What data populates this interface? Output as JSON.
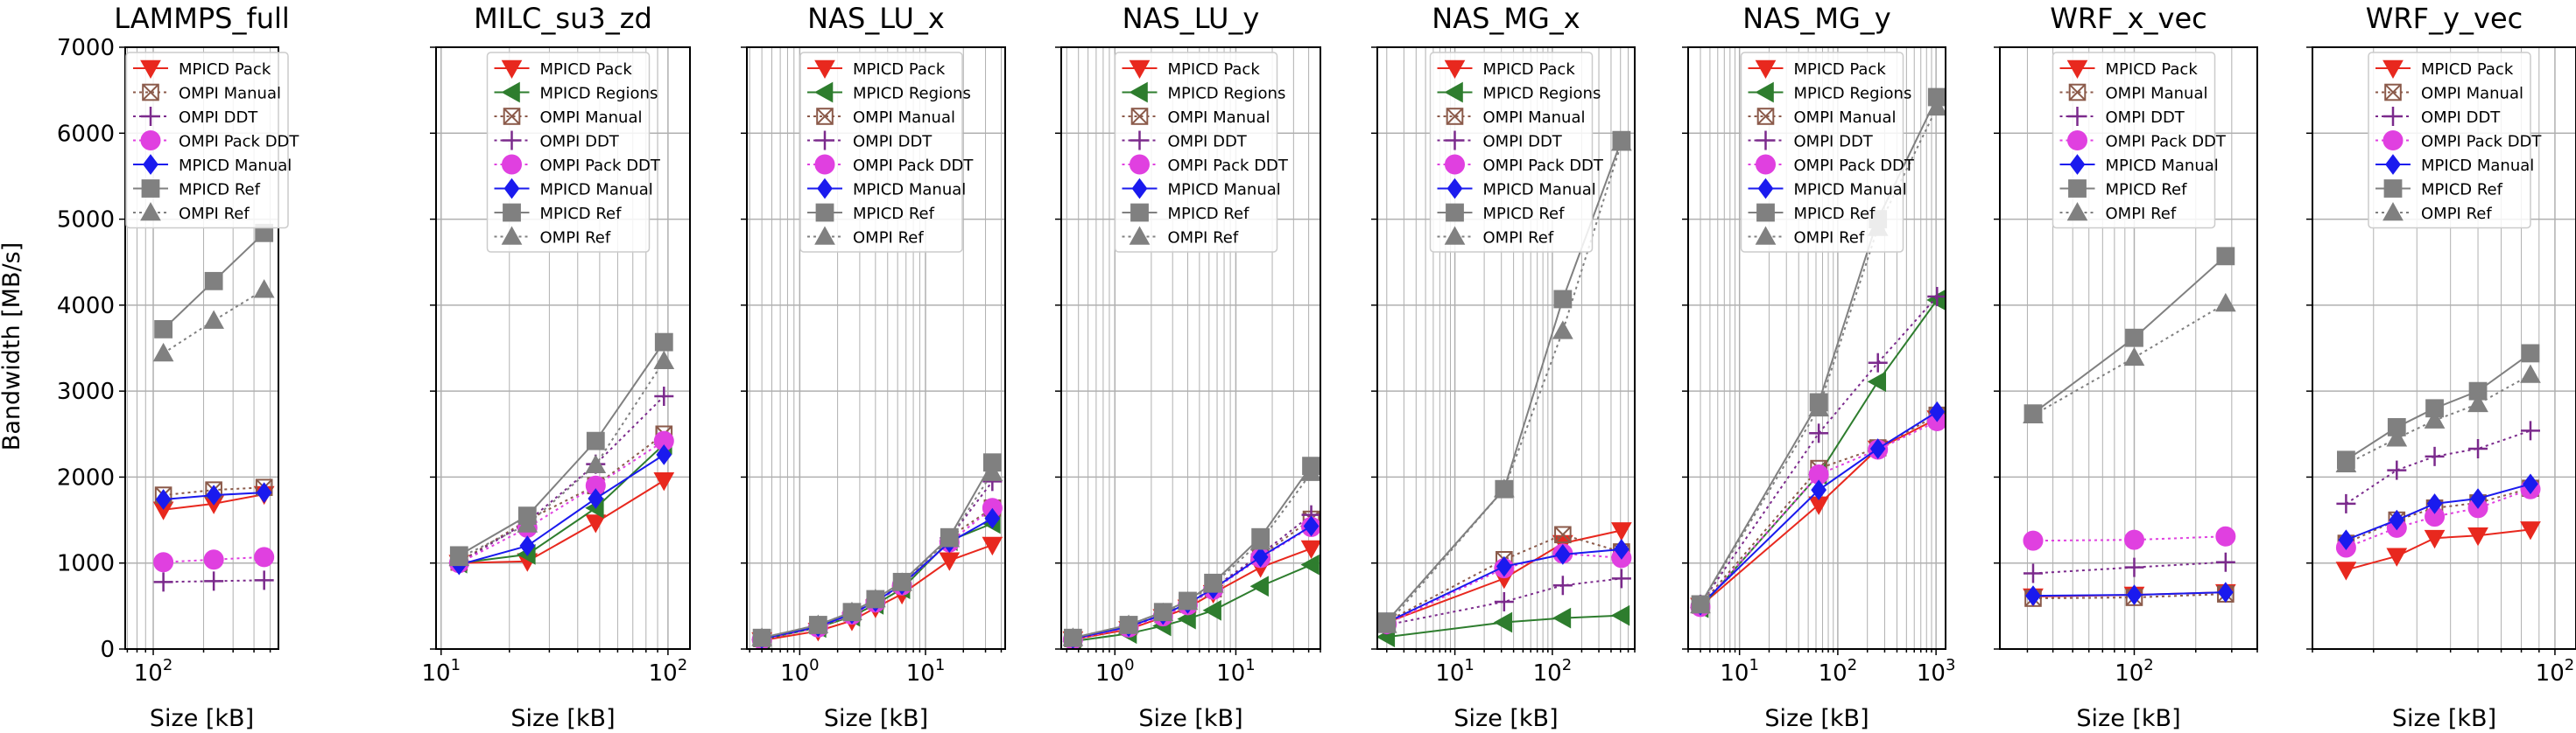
{
  "figure": {
    "ylabel": "Bandwidth [MB/s]",
    "xlabel": "Size [kB]"
  },
  "styles": {
    "MPICD Pack": {
      "color": "#e8281e",
      "marker": "tri-down",
      "dash": "solid"
    },
    "MPICD Regions": {
      "color": "#2e7d2e",
      "marker": "tri-left",
      "dash": "solid"
    },
    "OMPI Manual": {
      "color": "#8b5a4a",
      "marker": "x-box",
      "dash": "dotted"
    },
    "OMPI DDT": {
      "color": "#7b2a8c",
      "marker": "plus",
      "dash": "dotted"
    },
    "OMPI Pack DDT": {
      "color": "#e040e0",
      "marker": "circle",
      "dash": "dotted"
    },
    "MPICD Manual": {
      "color": "#1a1aee",
      "marker": "diamond",
      "dash": "solid"
    },
    "MPICD Ref": {
      "color": "#808080",
      "marker": "square",
      "dash": "solid"
    },
    "OMPI Ref": {
      "color": "#808080",
      "marker": "tri-up",
      "dash": "dotted"
    }
  },
  "chart_data": [
    {
      "type": "line",
      "title": "LAMMPS_full",
      "xlabel": "Size [kB]",
      "ylabel": "Bandwidth [MB/s]",
      "xscale": "log",
      "ylim": [
        0,
        7000
      ],
      "yticks": [
        0,
        1000,
        2000,
        3000,
        4000,
        5000,
        6000,
        7000
      ],
      "grid": true,
      "legend_position": "upper center",
      "x": [
        115,
        230,
        460
      ],
      "series": [
        {
          "name": "MPICD Pack",
          "values": [
            1620,
            1690,
            1800
          ]
        },
        {
          "name": "OMPI Manual",
          "values": [
            1790,
            1850,
            1880
          ]
        },
        {
          "name": "OMPI DDT",
          "values": [
            780,
            790,
            800
          ]
        },
        {
          "name": "OMPI Pack DDT",
          "values": [
            1010,
            1040,
            1070
          ]
        },
        {
          "name": "MPICD Manual",
          "values": [
            1740,
            1790,
            1820
          ]
        },
        {
          "name": "MPICD Ref",
          "values": [
            3720,
            4280,
            4840
          ]
        },
        {
          "name": "OMPI Ref",
          "values": [
            3440,
            3820,
            4180
          ]
        }
      ]
    },
    {
      "type": "line",
      "title": "MILC_su3_zd",
      "xlabel": "Size [kB]",
      "xscale": "log",
      "ylim": [
        0,
        7000
      ],
      "grid": true,
      "legend_position": "upper center",
      "x": [
        12,
        24,
        48,
        96
      ],
      "series": [
        {
          "name": "MPICD Pack",
          "values": [
            1000,
            1020,
            1470,
            1960
          ]
        },
        {
          "name": "MPICD Regions",
          "values": [
            1000,
            1100,
            1640,
            2380
          ]
        },
        {
          "name": "OMPI Manual",
          "values": [
            1010,
            1500,
            1900,
            2500
          ]
        },
        {
          "name": "OMPI DDT",
          "values": [
            1000,
            1480,
            2150,
            2940
          ]
        },
        {
          "name": "OMPI Pack DDT",
          "values": [
            1000,
            1410,
            1900,
            2420
          ]
        },
        {
          "name": "MPICD Manual",
          "values": [
            980,
            1200,
            1750,
            2260
          ]
        },
        {
          "name": "MPICD Ref",
          "values": [
            1090,
            1550,
            2420,
            3570
          ]
        },
        {
          "name": "OMPI Ref",
          "values": [
            1060,
            1450,
            2140,
            3350
          ]
        }
      ]
    },
    {
      "type": "line",
      "title": "NAS_LU_x",
      "xlabel": "Size [kB]",
      "xscale": "log",
      "ylim": [
        0,
        7000
      ],
      "grid": true,
      "legend_position": "upper center",
      "x": [
        0.5,
        1.4,
        2.6,
        4.0,
        6.5,
        15.5,
        34
      ],
      "series": [
        {
          "name": "MPICD Pack",
          "values": [
            100,
            210,
            330,
            480,
            640,
            1030,
            1210
          ]
        },
        {
          "name": "MPICD Regions",
          "values": [
            110,
            250,
            380,
            520,
            700,
            1260,
            1460
          ]
        },
        {
          "name": "OMPI Manual",
          "values": [
            120,
            270,
            420,
            560,
            760,
            1300,
            1640
          ]
        },
        {
          "name": "OMPI DDT",
          "values": [
            120,
            270,
            420,
            560,
            760,
            1290,
            1950
          ]
        },
        {
          "name": "OMPI Pack DDT",
          "values": [
            110,
            250,
            400,
            540,
            740,
            1240,
            1640
          ]
        },
        {
          "name": "MPICD Manual",
          "values": [
            120,
            260,
            410,
            550,
            750,
            1240,
            1520
          ]
        },
        {
          "name": "MPICD Ref",
          "values": [
            130,
            280,
            430,
            580,
            780,
            1300,
            2170
          ]
        },
        {
          "name": "OMPI Ref",
          "values": [
            130,
            280,
            430,
            580,
            770,
            1280,
            2050
          ]
        }
      ]
    },
    {
      "type": "line",
      "title": "NAS_LU_y",
      "xlabel": "Size [kB]",
      "xscale": "log",
      "ylim": [
        0,
        7000
      ],
      "grid": true,
      "legend_position": "upper center",
      "x": [
        0.45,
        1.3,
        2.5,
        4.0,
        6.5,
        16,
        42
      ],
      "series": [
        {
          "name": "MPICD Pack",
          "values": [
            110,
            230,
            370,
            480,
            650,
            950,
            1170
          ]
        },
        {
          "name": "MPICD Regions",
          "values": [
            90,
            180,
            270,
            350,
            450,
            730,
            980
          ]
        },
        {
          "name": "OMPI Manual",
          "values": [
            120,
            260,
            400,
            520,
            700,
            1080,
            1510
          ]
        },
        {
          "name": "OMPI DDT",
          "values": [
            120,
            260,
            400,
            530,
            710,
            1100,
            1560
          ]
        },
        {
          "name": "OMPI Pack DDT",
          "values": [
            110,
            250,
            380,
            510,
            690,
            1060,
            1420
          ]
        },
        {
          "name": "MPICD Manual",
          "values": [
            120,
            260,
            400,
            530,
            700,
            1070,
            1430
          ]
        },
        {
          "name": "MPICD Ref",
          "values": [
            130,
            280,
            430,
            560,
            770,
            1300,
            2130
          ]
        },
        {
          "name": "OMPI Ref",
          "values": [
            130,
            280,
            420,
            550,
            750,
            1250,
            2050
          ]
        }
      ]
    },
    {
      "type": "line",
      "title": "NAS_MG_x",
      "xlabel": "Size [kB]",
      "xscale": "log",
      "ylim": [
        0,
        7000
      ],
      "grid": true,
      "legend_position": "upper center",
      "x": [
        2,
        32,
        128,
        512
      ],
      "series": [
        {
          "name": "MPICD Pack",
          "values": [
            310,
            820,
            1230,
            1380
          ]
        },
        {
          "name": "MPICD Regions",
          "values": [
            140,
            310,
            360,
            390
          ]
        },
        {
          "name": "OMPI Manual",
          "values": [
            320,
            1040,
            1330,
            1130
          ]
        },
        {
          "name": "OMPI DDT",
          "values": [
            280,
            550,
            740,
            820
          ]
        },
        {
          "name": "OMPI Pack DDT",
          "values": [
            290,
            940,
            1110,
            1060
          ]
        },
        {
          "name": "MPICD Manual",
          "values": [
            310,
            960,
            1100,
            1160
          ]
        },
        {
          "name": "MPICD Ref",
          "values": [
            320,
            1860,
            4070,
            5920
          ]
        },
        {
          "name": "OMPI Ref",
          "values": [
            280,
            1860,
            3700,
            5890
          ]
        }
      ]
    },
    {
      "type": "line",
      "title": "NAS_MG_y",
      "xlabel": "Size [kB]",
      "xscale": "log",
      "ylim": [
        0,
        7000
      ],
      "grid": true,
      "legend_position": "upper center",
      "x": [
        4,
        64,
        256,
        1024
      ],
      "series": [
        {
          "name": "MPICD Pack",
          "values": [
            500,
            1680,
            2330,
            2680
          ]
        },
        {
          "name": "MPICD Regions",
          "values": [
            480,
            2030,
            3110,
            4060
          ]
        },
        {
          "name": "OMPI Manual",
          "values": [
            510,
            2100,
            2340,
            2720
          ]
        },
        {
          "name": "OMPI DDT",
          "values": [
            520,
            2510,
            3330,
            4100
          ]
        },
        {
          "name": "OMPI Pack DDT",
          "values": [
            490,
            2030,
            2320,
            2650
          ]
        },
        {
          "name": "MPICD Manual",
          "values": [
            510,
            1850,
            2330,
            2760
          ]
        },
        {
          "name": "MPICD Ref",
          "values": [
            520,
            2870,
            5000,
            6420
          ]
        },
        {
          "name": "OMPI Ref",
          "values": [
            510,
            2800,
            4900,
            6300
          ]
        }
      ]
    },
    {
      "type": "line",
      "title": "WRF_x_vec",
      "xlabel": "Size [kB]",
      "xscale": "log",
      "ylim": [
        0,
        7000
      ],
      "grid": true,
      "legend_position": "upper center",
      "x": [
        32,
        100,
        280
      ],
      "series": [
        {
          "name": "MPICD Pack",
          "values": [
            610,
            630,
            660
          ]
        },
        {
          "name": "OMPI Manual",
          "values": [
            590,
            600,
            640
          ]
        },
        {
          "name": "OMPI DDT",
          "values": [
            880,
            950,
            1010
          ]
        },
        {
          "name": "OMPI Pack DDT",
          "values": [
            1260,
            1270,
            1310
          ]
        },
        {
          "name": "MPICD Manual",
          "values": [
            620,
            630,
            660
          ]
        },
        {
          "name": "MPICD Ref",
          "values": [
            2740,
            3620,
            4570
          ]
        },
        {
          "name": "OMPI Ref",
          "values": [
            2720,
            3390,
            4020
          ]
        }
      ]
    },
    {
      "type": "line",
      "title": "WRF_y_vec",
      "xlabel": "Size [kB]",
      "xscale": "log",
      "ylim": [
        0,
        7000
      ],
      "grid": true,
      "legend_position": "upper center",
      "x": [
        25,
        35,
        45,
        60,
        85
      ],
      "series": [
        {
          "name": "MPICD Pack",
          "values": [
            920,
            1080,
            1290,
            1320,
            1390
          ]
        },
        {
          "name": "OMPI Manual",
          "values": [
            1230,
            1500,
            1640,
            1700,
            1870
          ]
        },
        {
          "name": "OMPI DDT",
          "values": [
            1690,
            2080,
            2240,
            2330,
            2540
          ]
        },
        {
          "name": "OMPI Pack DDT",
          "values": [
            1180,
            1410,
            1540,
            1640,
            1860
          ]
        },
        {
          "name": "MPICD Manual",
          "values": [
            1270,
            1500,
            1690,
            1750,
            1920
          ]
        },
        {
          "name": "MPICD Ref",
          "values": [
            2200,
            2580,
            2800,
            3000,
            3440
          ]
        },
        {
          "name": "OMPI Ref",
          "values": [
            2150,
            2450,
            2660,
            2850,
            3190
          ]
        }
      ]
    }
  ]
}
